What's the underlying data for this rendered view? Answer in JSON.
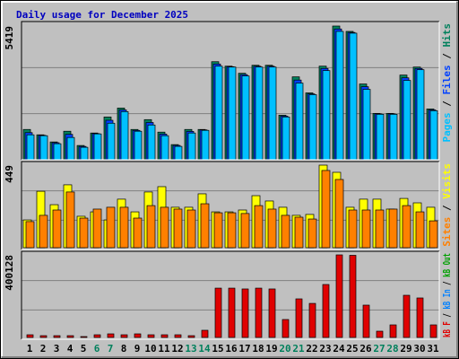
{
  "title": "Daily usage for December 2025",
  "chart_data": [
    {
      "type": "bar",
      "ylim": [
        0,
        5419
      ],
      "yticks": [
        5419
      ],
      "legend_separator": "/",
      "series": [
        {
          "name": "Hits",
          "color": "#00805c",
          "values": [
            1228,
            1011,
            722,
            1156,
            578,
            1084,
            1734,
            2095,
            1228,
            1626,
            1120,
            614,
            1228,
            1228,
            3974,
            3793,
            3504,
            3829,
            3829,
            1806,
            3360,
            2710,
            3793,
            5419,
            5202,
            3071,
            1879,
            1879,
            3432,
            3757,
            2059
          ]
        },
        {
          "name": "Files",
          "color": "#0040ff",
          "values": [
            1100,
            990,
            690,
            1030,
            540,
            1060,
            1600,
            2020,
            1190,
            1510,
            1040,
            580,
            1150,
            1210,
            3880,
            3770,
            3450,
            3790,
            3790,
            1770,
            3230,
            2670,
            3700,
            5300,
            5160,
            2960,
            1860,
            1860,
            3320,
            3700,
            2020
          ]
        },
        {
          "name": "Pages",
          "color": "#00c0ff",
          "values": [
            1011,
            975,
            650,
            903,
            505,
            1048,
            1481,
            1951,
            1156,
            1409,
            975,
            542,
            1084,
            1192,
            3793,
            3757,
            3396,
            3757,
            3757,
            1734,
            3107,
            2638,
            3613,
            5202,
            5130,
            2854,
            1842,
            1842,
            3215,
            3649,
            1987
          ]
        }
      ]
    },
    {
      "type": "bar",
      "ylim": [
        0,
        449
      ],
      "yticks": [
        449
      ],
      "legend_separator": "/",
      "series": [
        {
          "name": "Visits",
          "color": "#ffff00",
          "values": [
            151,
            307,
            234,
            342,
            171,
            195,
            151,
            264,
            195,
            303,
            332,
            220,
            220,
            293,
            195,
            195,
            205,
            283,
            254,
            220,
            176,
            181,
            449,
            410,
            220,
            264,
            264,
            210,
            268,
            244,
            220
          ]
        },
        {
          "name": "Sites",
          "color": "#ff8000",
          "values": [
            142,
            176,
            205,
            303,
            161,
            210,
            220,
            220,
            161,
            229,
            220,
            210,
            205,
            239,
            190,
            190,
            186,
            229,
            210,
            176,
            166,
            156,
            420,
            371,
            205,
            205,
            205,
            210,
            229,
            195,
            146
          ]
        }
      ]
    },
    {
      "type": "bar",
      "ylim": [
        0,
        400128
      ],
      "yticks": [
        400128
      ],
      "legend_separator": "/",
      "categories": [
        "1",
        "2",
        "3",
        "4",
        "5",
        "6",
        "7",
        "8",
        "9",
        "10",
        "11",
        "12",
        "13",
        "14",
        "15",
        "16",
        "17",
        "18",
        "19",
        "20",
        "21",
        "22",
        "23",
        "24",
        "25",
        "26",
        "27",
        "28",
        "29",
        "30",
        "31"
      ],
      "category_label_colors": [
        "#000000",
        "#000000",
        "#000000",
        "#000000",
        "#000000",
        "#00805c",
        "#00805c",
        "#000000",
        "#000000",
        "#000000",
        "#000000",
        "#000000",
        "#00805c",
        "#00805c",
        "#000000",
        "#000000",
        "#000000",
        "#000000",
        "#000000",
        "#00805c",
        "#00805c",
        "#000000",
        "#000000",
        "#000000",
        "#000000",
        "#000000",
        "#00805c",
        "#00805c",
        "#000000",
        "#000000",
        "#000000"
      ],
      "series": [
        {
          "name": "kB Out",
          "color": "#00a000",
          "values": [
            0,
            0,
            0,
            0,
            0,
            0,
            0,
            0,
            0,
            0,
            0,
            0,
            0,
            0,
            0,
            0,
            0,
            0,
            0,
            0,
            0,
            0,
            0,
            0,
            0,
            0,
            0,
            0,
            0,
            0,
            0
          ]
        },
        {
          "name": "kB In",
          "color": "#0080ff",
          "values": [
            0,
            0,
            0,
            0,
            0,
            0,
            0,
            0,
            0,
            0,
            0,
            0,
            0,
            0,
            0,
            0,
            0,
            0,
            0,
            0,
            0,
            0,
            0,
            0,
            0,
            0,
            0,
            0,
            0,
            0,
            0
          ]
        },
        {
          "name": "kB F",
          "color": "#e00000",
          "values": [
            13000,
            8700,
            8700,
            8700,
            4349,
            13000,
            17400,
            13000,
            17400,
            13000,
            13000,
            13000,
            8700,
            34800,
            239000,
            239000,
            235000,
            239000,
            235000,
            87000,
            187000,
            165000,
            256600,
            400128,
            398000,
            156600,
            30400,
            60900,
            204400,
            191400,
            60900
          ]
        }
      ]
    }
  ]
}
